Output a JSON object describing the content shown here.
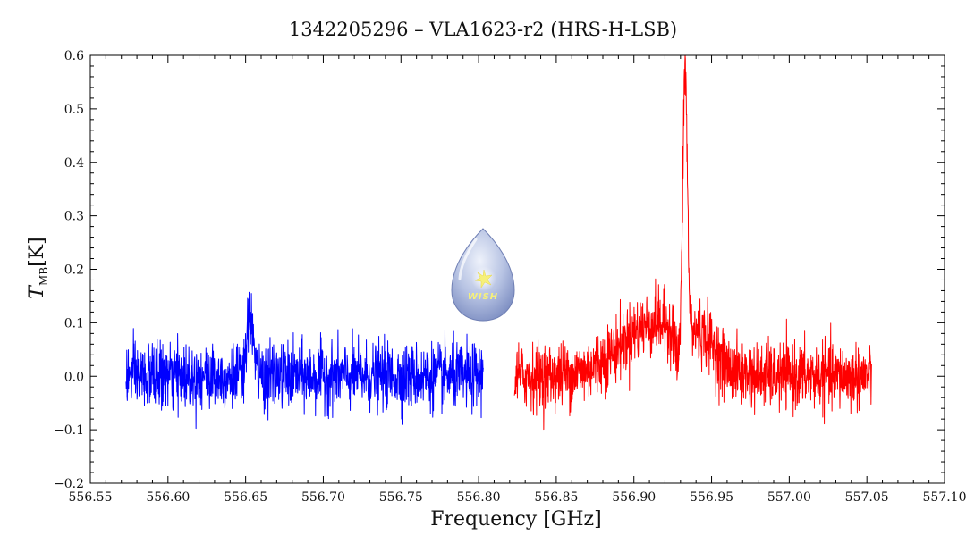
{
  "chart_data": {
    "type": "line",
    "title": "1342205296 – VLA1623-r2 (HRS-H-LSB)",
    "xlabel": "Frequency [GHz]",
    "ylabel_main": "T",
    "ylabel_sub": "MB",
    "ylabel_unit": "[K]",
    "xlim": [
      556.55,
      557.1
    ],
    "ylim": [
      -0.2,
      0.6
    ],
    "x_ticks": [
      556.55,
      556.6,
      556.65,
      556.7,
      556.75,
      556.8,
      556.85,
      556.9,
      556.95,
      557.0,
      557.05,
      557.1
    ],
    "x_tick_labels": [
      "556.55",
      "556.60",
      "556.65",
      "556.70",
      "556.75",
      "556.80",
      "556.85",
      "556.90",
      "556.95",
      "557.00",
      "557.05",
      "557.10"
    ],
    "y_ticks": [
      -0.2,
      -0.1,
      0.0,
      0.1,
      0.2,
      0.3,
      0.4,
      0.5,
      0.6
    ],
    "y_tick_labels": [
      "−0.2",
      "−0.1",
      "0.0",
      "0.1",
      "0.2",
      "0.3",
      "0.4",
      "0.5",
      "0.6"
    ],
    "grid": false,
    "legend": "none",
    "series": [
      {
        "color": "#0000ff",
        "x_range": [
          556.573,
          556.803
        ],
        "noise_rms": 0.03,
        "features": [
          {
            "kind": "emission",
            "center": 556.653,
            "amplitude": 0.12,
            "width": 0.0018
          }
        ]
      },
      {
        "color": "#ff0000",
        "x_range": [
          556.823,
          557.053
        ],
        "noise_rms": 0.03,
        "features": [
          {
            "kind": "emission",
            "center": 556.914,
            "amplitude": 0.1,
            "width": 0.022
          },
          {
            "kind": "emission",
            "center": 556.933,
            "amplitude": 0.5,
            "width": 0.0014
          },
          {
            "kind": "absorption",
            "center": 556.928,
            "amplitude": -0.06,
            "width": 0.0012
          },
          {
            "kind": "emission",
            "center": 556.945,
            "amplitude": 0.04,
            "width": 0.008
          }
        ]
      }
    ]
  },
  "logo": {
    "text": "WISH",
    "icon": "wish-drop-logo-icon",
    "colors": {
      "drop_top": "#d8dff2",
      "drop_bottom": "#8a9ac9",
      "star": "#f6f07a"
    }
  }
}
